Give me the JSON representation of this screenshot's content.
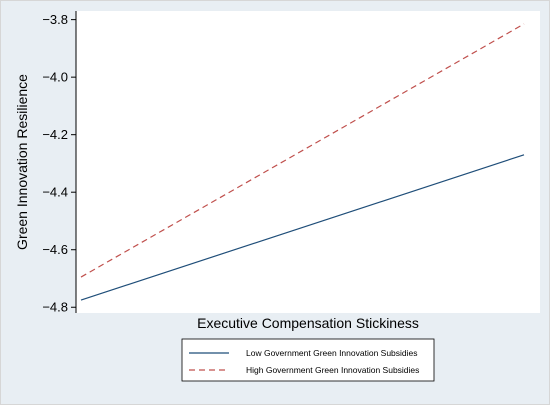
{
  "chart_data": {
    "type": "line",
    "title": "",
    "xlabel": "Executive Compensation Stickiness",
    "ylabel": "Green Innovation Resilience",
    "x": [
      0,
      1
    ],
    "xlim": [
      0,
      1
    ],
    "ylim": [
      -4.82,
      -3.77
    ],
    "yticks": [
      -4.8,
      -4.6,
      -4.4,
      -4.2,
      -4.0,
      -3.8
    ],
    "ytick_labels": [
      "−4.8",
      "−4.6",
      "−4.4",
      "−4.2",
      "−4.0",
      "−3.8"
    ],
    "grid": false,
    "legend_position": "bottom",
    "series": [
      {
        "name": "Low Government Green Innovation Subsidies",
        "values": [
          -4.775,
          -4.27
        ],
        "color": "#1f4e79",
        "style": "solid"
      },
      {
        "name": "High Government Green Innovation Subsidies",
        "values": [
          -4.695,
          -3.815
        ],
        "color": "#c0504d",
        "style": "dashed"
      }
    ]
  }
}
